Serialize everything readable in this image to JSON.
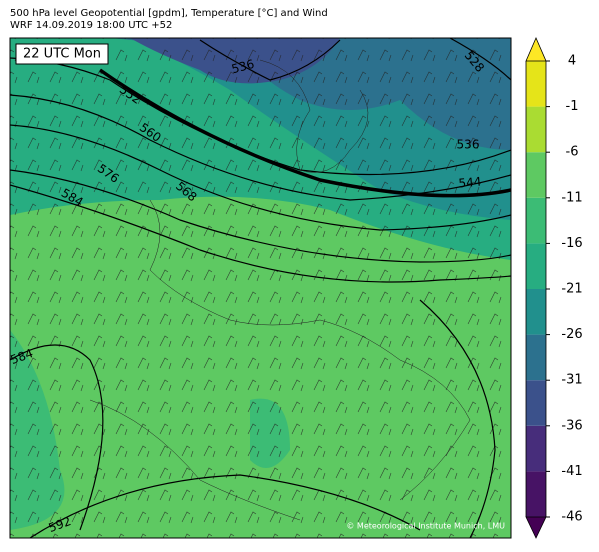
{
  "header": {
    "title": "500 hPa level Geopotential [gpdm], Temperature [°C] and Wind",
    "subtitle": "WRF 14.09.2019 18:00 UTC +52"
  },
  "map": {
    "time_label": "22 UTC Mon",
    "copyright": "© Meteorological Institute Munich, LMU",
    "contour_labels": [
      "536",
      "528",
      "552",
      "560",
      "536",
      "576",
      "568",
      "544",
      "584",
      "584",
      "592"
    ]
  },
  "colorbar": {
    "ticks": [
      -46,
      -41,
      -36,
      -31,
      -26,
      -21,
      -16,
      -11,
      -6,
      -1,
      4
    ],
    "colors": [
      "#471365",
      "#472d7b",
      "#3b518b",
      "#2c718e",
      "#21908d",
      "#27ad81",
      "#3cbc75",
      "#5ec962",
      "#aadc32",
      "#e5e419"
    ],
    "under_color": "#440154",
    "over_color": "#fde725"
  }
}
